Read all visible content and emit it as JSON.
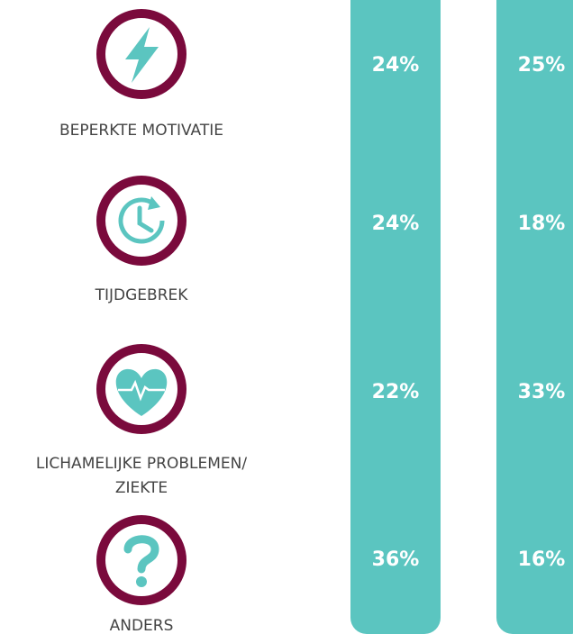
{
  "rows": [
    {
      "label": [
        "BEPERKTE MOTIVATIE"
      ],
      "values": [
        "24%",
        "25%"
      ]
    },
    {
      "label": [
        "TIJDGEBREK"
      ],
      "values": [
        "24%",
        "18%"
      ]
    },
    {
      "label": [
        "LICHAMELIJKE PROBLEMEN/",
        "ZIEKTE"
      ],
      "values": [
        "22%",
        "33%"
      ]
    },
    {
      "label": [
        "ANDERS"
      ],
      "values": [
        "36%",
        "16%"
      ]
    }
  ]
}
